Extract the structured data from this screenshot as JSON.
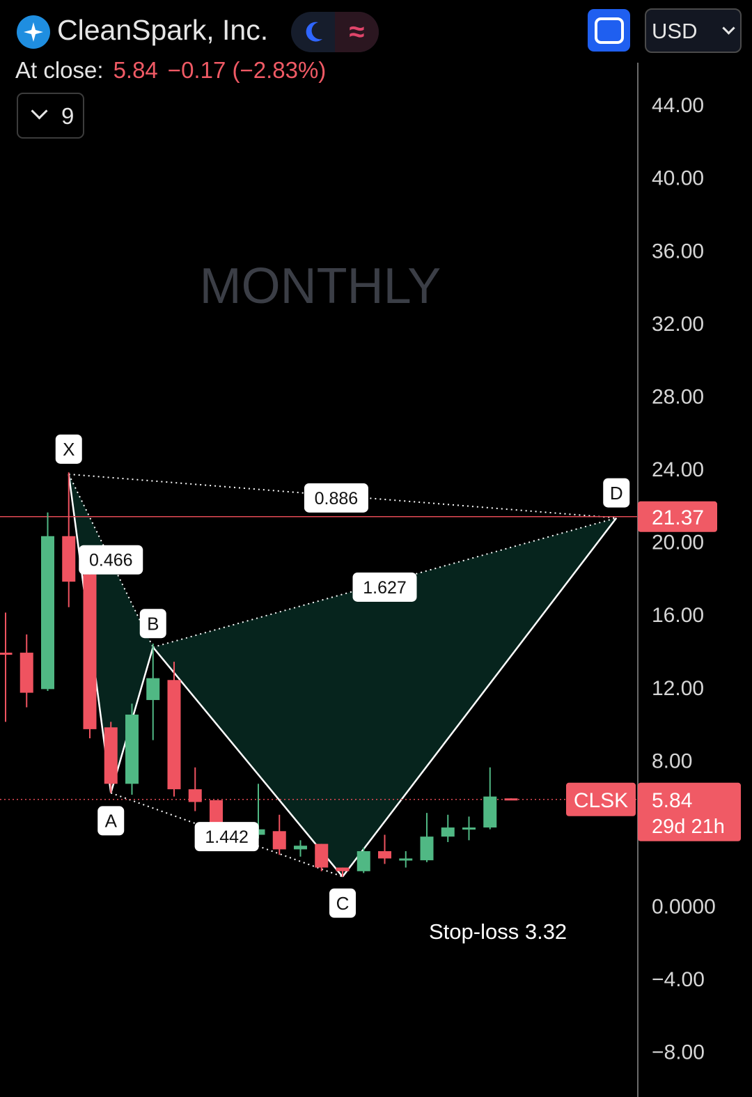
{
  "header": {
    "logo_icon": "sparkle-star-icon",
    "title": "CleanSpark, Inc.",
    "theme_toggle_icon": "moon-icon",
    "indicator_toggle_icon": "wave-icon",
    "fullscreen_icon": "fullscreen-icon",
    "currency": "USD",
    "at_close_label": "At close:",
    "close_price": "5.84",
    "close_change": "−0.17 (−2.83%)",
    "indicators_count": "9"
  },
  "colors": {
    "up": "#50b884",
    "down": "#ef5360",
    "pattern_fill": "#06241d",
    "accent_red": "#f05a65",
    "blue": "#1f5ff0"
  },
  "chart_data": {
    "type": "candlestick",
    "timeframe_watermark": "MONTHLY",
    "symbol": "CLSK",
    "price_scale_labels": [
      "44.00",
      "40.00",
      "36.00",
      "32.00",
      "28.00",
      "24.00",
      "20.00",
      "16.00",
      "12.00",
      "8.00",
      "0.0000",
      "−4.00",
      "−8.00"
    ],
    "ylim": [
      -10.5,
      46.3
    ],
    "candles": [
      {
        "o": 13.9,
        "h": 16.1,
        "l": 10.1,
        "c": 13.8
      },
      {
        "o": 13.9,
        "h": 14.9,
        "l": 10.9,
        "c": 11.7
      },
      {
        "o": 11.9,
        "h": 21.6,
        "l": 11.8,
        "c": 20.3
      },
      {
        "o": 20.3,
        "h": 23.8,
        "l": 16.4,
        "c": 17.8
      },
      {
        "o": 18.2,
        "h": 18.9,
        "l": 9.2,
        "c": 9.7
      },
      {
        "o": 9.8,
        "h": 10.1,
        "l": 6.2,
        "c": 6.7
      },
      {
        "o": 6.7,
        "h": 11.1,
        "l": 6.1,
        "c": 10.5
      },
      {
        "o": 11.3,
        "h": 14.4,
        "l": 9.1,
        "c": 12.5
      },
      {
        "o": 12.4,
        "h": 13.4,
        "l": 6.0,
        "c": 6.4
      },
      {
        "o": 6.4,
        "h": 7.6,
        "l": 5.2,
        "c": 5.7
      },
      {
        "o": 5.8,
        "h": 5.8,
        "l": 3.9,
        "c": 3.8
      },
      {
        "o": 3.9,
        "h": 4.1,
        "l": 3.4,
        "c": 3.9
      },
      {
        "o": 3.9,
        "h": 6.7,
        "l": 3.7,
        "c": 4.2
      },
      {
        "o": 4.1,
        "h": 5.0,
        "l": 2.8,
        "c": 3.1
      },
      {
        "o": 3.1,
        "h": 3.6,
        "l": 2.7,
        "c": 3.3
      },
      {
        "o": 3.4,
        "h": 3.4,
        "l": 1.9,
        "c": 2.1
      },
      {
        "o": 2.1,
        "h": 2.1,
        "l": 1.6,
        "c": 1.9
      },
      {
        "o": 1.9,
        "h": 3.2,
        "l": 1.8,
        "c": 3.0
      },
      {
        "o": 3.0,
        "h": 3.9,
        "l": 2.3,
        "c": 2.6
      },
      {
        "o": 2.6,
        "h": 3.0,
        "l": 2.1,
        "c": 2.6
      },
      {
        "o": 2.5,
        "h": 5.1,
        "l": 2.4,
        "c": 3.8
      },
      {
        "o": 3.8,
        "h": 5.0,
        "l": 3.5,
        "c": 4.3
      },
      {
        "o": 4.3,
        "h": 4.9,
        "l": 3.6,
        "c": 4.3
      },
      {
        "o": 4.3,
        "h": 7.6,
        "l": 4.2,
        "c": 6.0
      },
      {
        "o": 5.9,
        "h": 5.9,
        "l": 5.8,
        "c": 5.84
      }
    ],
    "last_price": {
      "value": 5.84,
      "label": "5.84",
      "countdown": "29d 21h"
    },
    "target_line": {
      "value": 21.37,
      "label": "21.37"
    },
    "pattern": {
      "points": [
        {
          "name": "X",
          "index": 3,
          "price": 23.7
        },
        {
          "name": "A",
          "index": 5,
          "price": 6.2
        },
        {
          "name": "B",
          "index": 7,
          "price": 14.2
        },
        {
          "name": "C",
          "index": 16,
          "price": 1.6
        },
        {
          "name": "D",
          "index": 29,
          "price": 21.3
        }
      ],
      "ratios": [
        {
          "label": "0.466",
          "at_index": 5.0,
          "at_price": 19.0
        },
        {
          "label": "1.442",
          "at_index": 10.5,
          "at_price": 3.8
        },
        {
          "label": "1.627",
          "at_index": 18.0,
          "at_price": 17.5
        },
        {
          "label": "0.886",
          "at_index": 15.7,
          "at_price": 22.4
        }
      ]
    },
    "annotations": [
      "Stop-loss 3.32"
    ]
  }
}
